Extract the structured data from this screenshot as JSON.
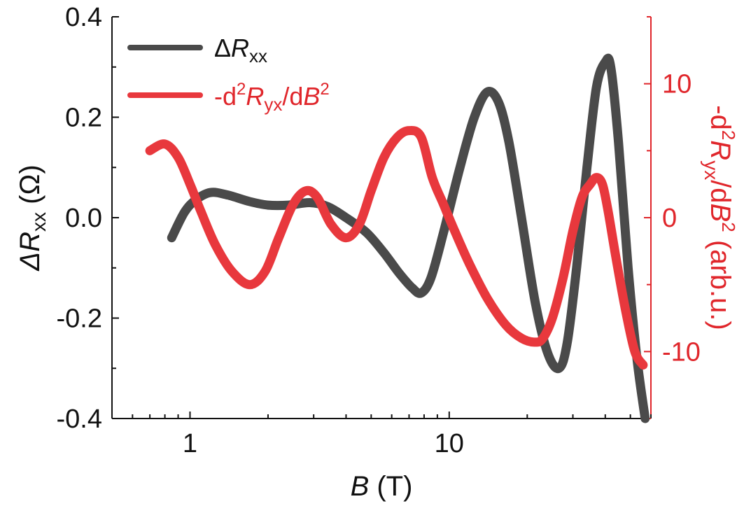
{
  "chart_data": {
    "type": "line",
    "x": {
      "label_italic": "B",
      "label_rest": " (T)",
      "scale": "log",
      "lim": [
        0.5,
        60
      ],
      "major_ticks": [
        1,
        10
      ],
      "tick_labels": [
        "1",
        "10"
      ]
    },
    "y_left": {
      "label_pre": "ΔR",
      "label_sub": "xx",
      "label_post": " (Ω)",
      "lim": [
        -0.4,
        0.4
      ],
      "ticks": [
        -0.4,
        -0.2,
        0.0,
        0.2,
        0.4
      ],
      "tick_labels": [
        "-0.4",
        "-0.2",
        "0.0",
        "0.2",
        "0.4"
      ],
      "color": "#111111"
    },
    "y_right": {
      "label": "-d²R_yx/dB² (arb.u.)",
      "label_parts": [
        "-d",
        "2",
        "R",
        "yx",
        "/d",
        "B",
        "2",
        " (arb.u.)"
      ],
      "lim": [
        -15,
        15
      ],
      "ticks": [
        10,
        0,
        -10
      ],
      "tick_labels": [
        "10",
        "0",
        "-10"
      ],
      "color": "#e0262b"
    },
    "legend": {
      "placement": "top-left",
      "entries": [
        {
          "series": "dRxx",
          "parts": [
            "Δ",
            "R",
            "xx"
          ]
        },
        {
          "series": "d2Ryx",
          "parts": [
            "-d",
            "2",
            "R",
            "yx",
            "/d",
            "B",
            "2"
          ]
        }
      ]
    },
    "series": [
      {
        "id": "dRxx",
        "axis": "left",
        "color": "#4a4a4a",
        "x": [
          0.85,
          0.95,
          1.05,
          1.2,
          1.4,
          1.7,
          2.0,
          2.4,
          2.9,
          3.4,
          4.0,
          4.8,
          5.6,
          6.4,
          7.2,
          7.8,
          8.5,
          9.5,
          11.0,
          12.5,
          14.0,
          15.5,
          17.0,
          19.0,
          21.5,
          24.0,
          26.5,
          28.5,
          31.0,
          34.0,
          37.0,
          40.0,
          42.0,
          45.0,
          49.0,
          53.0,
          57.0
        ],
        "y": [
          -0.04,
          0.01,
          0.035,
          0.05,
          0.045,
          0.032,
          0.025,
          0.025,
          0.03,
          0.022,
          0.0,
          -0.03,
          -0.07,
          -0.11,
          -0.14,
          -0.15,
          -0.12,
          -0.03,
          0.1,
          0.2,
          0.25,
          0.23,
          0.15,
          0.0,
          -0.17,
          -0.27,
          -0.3,
          -0.25,
          -0.1,
          0.1,
          0.26,
          0.31,
          0.3,
          0.15,
          -0.1,
          -0.28,
          -0.4
        ]
      },
      {
        "id": "d2Ryx",
        "axis": "right",
        "color": "#e8383d",
        "x": [
          0.7,
          0.8,
          0.9,
          1.0,
          1.1,
          1.25,
          1.45,
          1.7,
          1.95,
          2.2,
          2.5,
          2.8,
          3.1,
          3.5,
          4.0,
          4.5,
          5.0,
          5.6,
          6.3,
          7.0,
          7.8,
          8.6,
          9.5,
          10.5,
          12.0,
          14.0,
          16.5,
          19.0,
          21.5,
          23.0,
          25.0,
          27.5,
          30.0,
          32.5,
          35.0,
          37.0,
          39.0,
          41.0,
          44.0,
          48.0,
          52.0,
          56.0
        ],
        "y": [
          5.0,
          5.5,
          4.5,
          2.5,
          0.5,
          -2.0,
          -4.0,
          -5.0,
          -4.0,
          -1.5,
          1.0,
          2.0,
          1.5,
          -0.5,
          -1.5,
          -0.5,
          2.0,
          4.5,
          6.0,
          6.5,
          6.0,
          3.0,
          1.0,
          -1.0,
          -3.5,
          -6.0,
          -8.0,
          -9.0,
          -9.3,
          -9.0,
          -7.5,
          -4.5,
          -1.0,
          1.5,
          2.5,
          3.0,
          2.5,
          0.5,
          -3.0,
          -7.0,
          -10.0,
          -11.0
        ]
      }
    ]
  }
}
